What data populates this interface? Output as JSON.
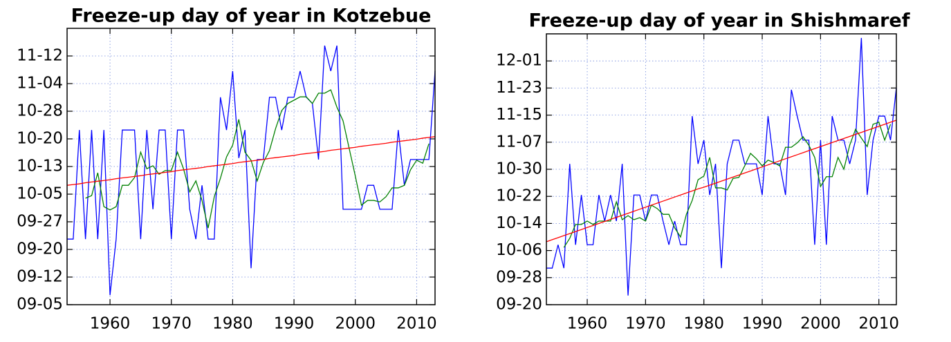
{
  "chart_data": [
    {
      "type": "line",
      "title": "Freeze-up day of year in Kotzebue",
      "x": [
        1953,
        1954,
        1955,
        1956,
        1957,
        1958,
        1959,
        1960,
        1961,
        1962,
        1963,
        1964,
        1965,
        1966,
        1967,
        1968,
        1969,
        1970,
        1971,
        1972,
        1973,
        1974,
        1975,
        1976,
        1977,
        1978,
        1979,
        1980,
        1981,
        1982,
        1983,
        1984,
        1985,
        1986,
        1987,
        1988,
        1989,
        1990,
        1991,
        1992,
        1993,
        1994,
        1995,
        1996,
        1997,
        1998,
        1999,
        2000,
        2001,
        2002,
        2003,
        2004,
        2005,
        2006,
        2007,
        2008,
        2009,
        2010,
        2011,
        2012,
        2013
      ],
      "series": [
        {
          "color": "#0000ff",
          "values": [
            265.8,
            265.8,
            295.4,
            265.8,
            295.4,
            265.8,
            295.4,
            250.6,
            265.8,
            295.4,
            295.4,
            295.4,
            265.8,
            295.4,
            273.9,
            295.4,
            295.4,
            265.8,
            295.4,
            295.4,
            273.9,
            265.8,
            280.4,
            265.8,
            265.8,
            304.3,
            295.4,
            311.4,
            287.8,
            295.4,
            257.9,
            287.4,
            287.4,
            304.3,
            304.3,
            295.4,
            304.3,
            304.3,
            311.4,
            304.3,
            302.6,
            287.4,
            318.3,
            311.4,
            318.3,
            273.9,
            273.9,
            273.9,
            273.9,
            280.4,
            280.4,
            273.9,
            273.9,
            273.9,
            295.4,
            280.4,
            287.4,
            287.4,
            287.4,
            287.4,
            311.4
          ]
        },
        {
          "color": "#008000",
          "values": [
            null,
            null,
            null,
            276.9,
            277.6,
            283.8,
            274.6,
            273.7,
            274.6,
            280.4,
            280.4,
            282.5,
            289.4,
            284.9,
            285.7,
            283.4,
            284.4,
            284.4,
            289.4,
            284.8,
            278.6,
            281.6,
            276.3,
            268.8,
            277.3,
            282.3,
            288.1,
            291.3,
            298.3,
            289.4,
            287.2,
            281.6,
            286.6,
            289.8,
            295.8,
            300.7,
            302.6,
            303.5,
            304.4,
            304.4,
            302.6,
            305.4,
            305.4,
            306.3,
            301.6,
            297.9,
            290.4,
            282.9,
            275.0,
            276.3,
            276.3,
            275.9,
            277.3,
            279.7,
            279.7,
            280.4,
            284.6,
            287.2,
            286.4,
            291.7,
            null
          ]
        },
        {
          "color": "#ff0000",
          "values": [
            280.4,
            280.6,
            280.8,
            281.1,
            281.3,
            281.5,
            281.7,
            281.9,
            282.2,
            282.4,
            282.6,
            282.8,
            283.0,
            283.3,
            283.5,
            283.7,
            283.9,
            284.1,
            284.4,
            284.6,
            284.8,
            285.0,
            285.2,
            285.5,
            285.7,
            285.9,
            286.1,
            286.3,
            286.6,
            286.8,
            287.0,
            287.2,
            287.4,
            287.7,
            287.9,
            288.1,
            288.3,
            288.5,
            288.8,
            289.0,
            289.2,
            289.4,
            289.6,
            289.9,
            290.1,
            290.3,
            290.5,
            290.7,
            291.0,
            291.2,
            291.4,
            291.6,
            291.8,
            292.1,
            292.3,
            292.5,
            292.7,
            292.9,
            293.2,
            293.4,
            293.6
          ]
        }
      ],
      "xlim": [
        1953,
        2013
      ],
      "xticks": [
        1960,
        1970,
        1980,
        1990,
        2000,
        2010
      ],
      "ylim": [
        248,
        323
      ],
      "yticks": [
        {
          "value": 248,
          "label": "09-05"
        },
        {
          "value": 255.5,
          "label": "09-12"
        },
        {
          "value": 263,
          "label": "09-20"
        },
        {
          "value": 270.5,
          "label": "09-27"
        },
        {
          "value": 278,
          "label": "10-05"
        },
        {
          "value": 285.5,
          "label": "10-13"
        },
        {
          "value": 293,
          "label": "10-20"
        },
        {
          "value": 300.5,
          "label": "10-28"
        },
        {
          "value": 308,
          "label": "11-04"
        },
        {
          "value": 315.5,
          "label": "11-12"
        }
      ],
      "grid": true
    },
    {
      "type": "line",
      "title": "Freeze-up day of year in Shishmaref",
      "x": [
        1953,
        1954,
        1955,
        1956,
        1957,
        1958,
        1959,
        1960,
        1961,
        1962,
        1963,
        1964,
        1965,
        1966,
        1967,
        1968,
        1969,
        1970,
        1971,
        1972,
        1973,
        1974,
        1975,
        1976,
        1977,
        1978,
        1979,
        1980,
        1981,
        1982,
        1983,
        1984,
        1985,
        1986,
        1987,
        1988,
        1989,
        1990,
        1991,
        1992,
        1993,
        1994,
        1995,
        1996,
        1997,
        1998,
        1999,
        2000,
        2001,
        2002,
        2003,
        2004,
        2005,
        2006,
        2007,
        2008,
        2009,
        2010,
        2011,
        2012,
        2013
      ],
      "series": [
        {
          "color": "#0000ff",
          "values": [
            273.8,
            273.8,
            280.7,
            273.8,
            304.6,
            280.7,
            295.4,
            280.7,
            280.7,
            295.4,
            287.7,
            295.4,
            287.7,
            304.6,
            265.7,
            295.4,
            295.4,
            287.7,
            295.4,
            295.4,
            287.7,
            280.7,
            287.7,
            280.7,
            280.7,
            318.7,
            304.6,
            311.6,
            295.4,
            304.6,
            273.8,
            304.6,
            311.6,
            311.6,
            304.6,
            304.6,
            304.6,
            295.4,
            318.7,
            304.6,
            304.6,
            295.4,
            326.5,
            318.7,
            311.6,
            311.6,
            280.7,
            311.6,
            280.7,
            318.7,
            311.6,
            311.6,
            304.6,
            311.6,
            341.8,
            295.4,
            311.6,
            318.7,
            318.7,
            311.6,
            327.1
          ]
        },
        {
          "color": "#008000",
          "values": [
            null,
            null,
            null,
            279.9,
            282.6,
            286.7,
            286.7,
            287.7,
            286.7,
            287.7,
            287.7,
            287.7,
            293.4,
            288.1,
            289.3,
            288.1,
            288.7,
            287.7,
            292.4,
            291.4,
            289.7,
            289.7,
            285.7,
            283.0,
            289.7,
            293.8,
            299.9,
            301.0,
            306.5,
            297.5,
            297.5,
            296.9,
            300.3,
            300.6,
            304.0,
            307.7,
            306.1,
            304.0,
            305.7,
            305.0,
            304.0,
            309.5,
            309.5,
            310.8,
            312.6,
            310.1,
            306.5,
            297.9,
            300.8,
            300.8,
            306.5,
            303.0,
            310.1,
            314.8,
            312.2,
            309.7,
            316.3,
            316.9,
            311.6,
            316.3,
            null
          ]
        },
        {
          "color": "#ff0000",
          "values": [
            281.6,
            282.2,
            282.8,
            283.4,
            284.0,
            284.6,
            285.2,
            285.8,
            286.4,
            287.0,
            287.6,
            288.2,
            288.8,
            289.4,
            290.0,
            290.6,
            291.2,
            291.8,
            292.4,
            293.0,
            293.6,
            294.2,
            294.8,
            295.4,
            296.0,
            296.6,
            297.2,
            297.7,
            298.3,
            298.9,
            299.5,
            300.1,
            300.7,
            301.3,
            301.9,
            302.5,
            303.1,
            303.7,
            304.3,
            304.9,
            305.5,
            306.1,
            306.7,
            307.3,
            307.9,
            308.5,
            309.1,
            309.7,
            310.3,
            310.9,
            311.5,
            312.1,
            312.7,
            313.3,
            313.9,
            314.5,
            315.1,
            315.7,
            316.3,
            316.9,
            317.5
          ]
        }
      ],
      "xlim": [
        1953,
        2013
      ],
      "xticks": [
        1960,
        1970,
        1980,
        1990,
        2000,
        2010
      ],
      "ylim": [
        263,
        343
      ],
      "yticks": [
        {
          "value": 263,
          "label": "09-20"
        },
        {
          "value": 271,
          "label": "09-28"
        },
        {
          "value": 279,
          "label": "10-06"
        },
        {
          "value": 287,
          "label": "10-14"
        },
        {
          "value": 295,
          "label": "10-22"
        },
        {
          "value": 303,
          "label": "10-30"
        },
        {
          "value": 311,
          "label": "11-07"
        },
        {
          "value": 319,
          "label": "11-15"
        },
        {
          "value": 327,
          "label": "11-23"
        },
        {
          "value": 335,
          "label": "12-01"
        }
      ],
      "grid": true
    }
  ]
}
